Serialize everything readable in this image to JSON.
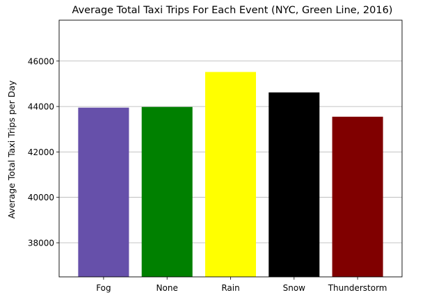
{
  "chart_data": {
    "type": "bar",
    "title": "Average Total Taxi Trips For Each Event (NYC, Green Line, 2016)",
    "xlabel": "",
    "ylabel": "Average Total Taxi Trips per Day",
    "categories": [
      "Fog",
      "None",
      "Rain",
      "Snow",
      "Thunderstorm"
    ],
    "values": [
      43950,
      43980,
      45520,
      44620,
      43550
    ],
    "colors": [
      "#6650aa",
      "#008000",
      "#ffff00",
      "#000000",
      "#800000"
    ],
    "ylim": [
      36500,
      47800
    ],
    "yticks": [
      38000,
      40000,
      42000,
      44000,
      46000
    ],
    "grid": "y-axis",
    "legend": "none"
  }
}
